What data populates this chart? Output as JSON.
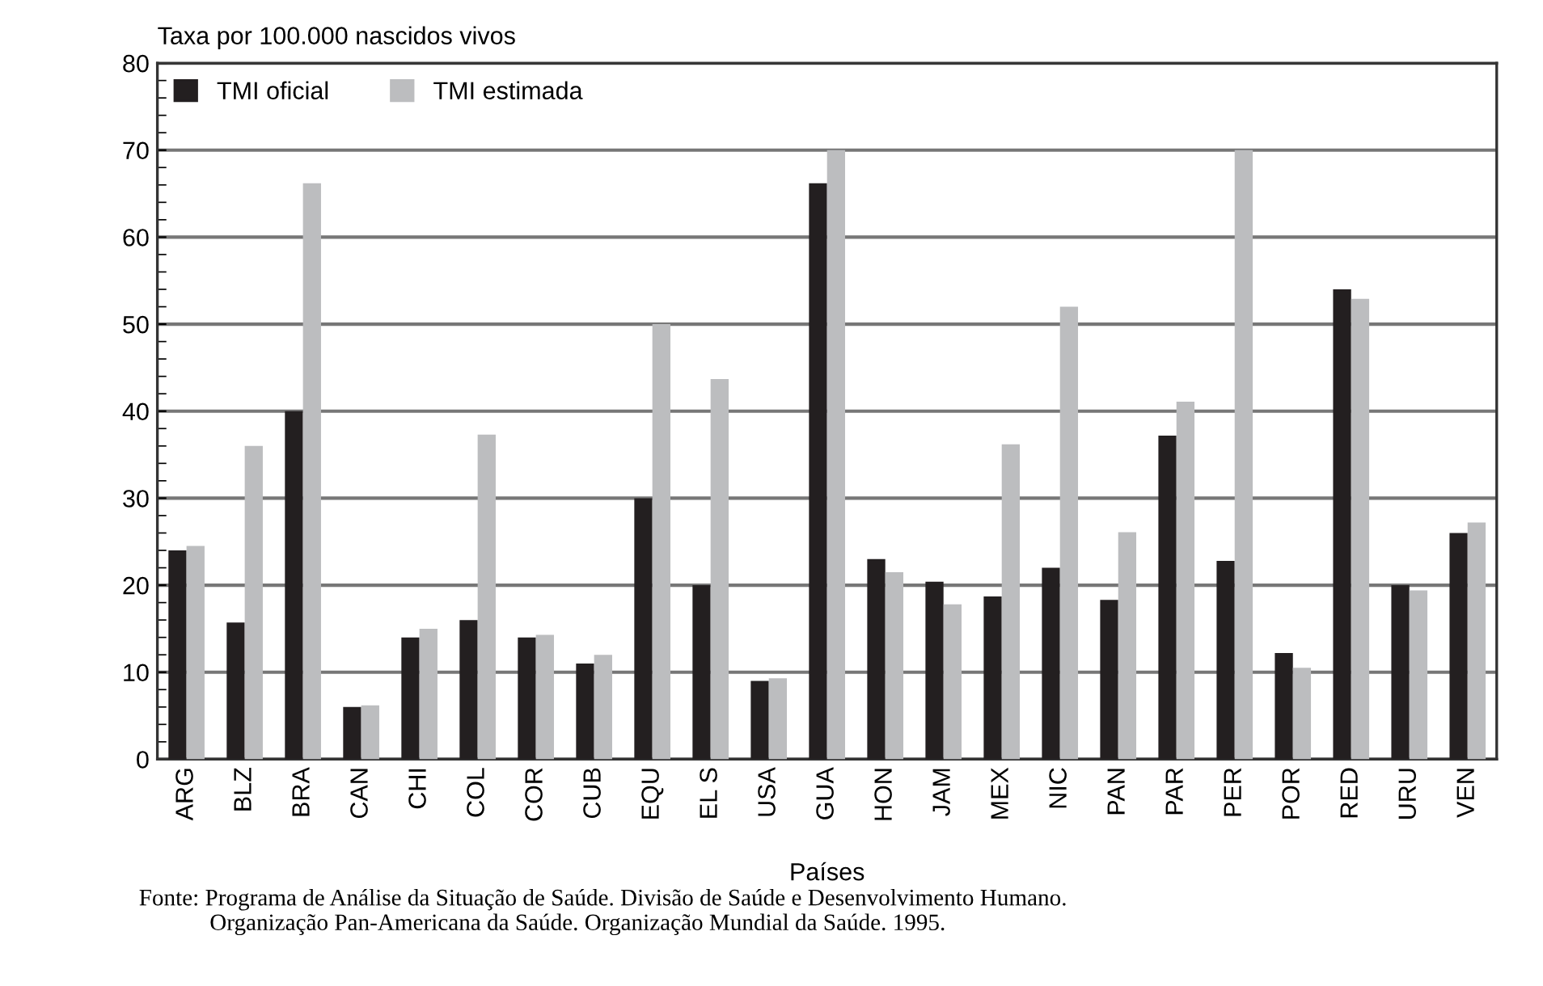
{
  "chart_data": {
    "type": "bar",
    "ylabel": "Taxa por 100.000 nascidos vivos",
    "xlabel": "Países",
    "categories": [
      "ARG",
      "BLZ",
      "BRA",
      "CAN",
      "CHI",
      "COL",
      "COR",
      "CUB",
      "EQU",
      "EL S",
      "USA",
      "GUA",
      "HON",
      "JAM",
      "MEX",
      "NIC",
      "PAN",
      "PAR",
      "PER",
      "POR",
      "RED",
      "URU",
      "VEN"
    ],
    "series": [
      {
        "name": "TMI oficial",
        "color": "#231f20",
        "values": [
          24,
          15.7,
          40,
          6,
          14,
          16,
          14,
          11,
          30,
          20,
          9,
          66.2,
          23,
          20.4,
          18.7,
          22,
          18.3,
          37.2,
          22.8,
          12.2,
          54,
          20,
          26
        ]
      },
      {
        "name": "TMI estimada",
        "color": "#bcbdbf",
        "values": [
          24.5,
          36,
          66.2,
          6.2,
          15,
          37.3,
          14.3,
          12,
          50,
          43.7,
          9.3,
          70,
          21.5,
          17.8,
          36.2,
          52,
          26.1,
          41.1,
          70,
          10.5,
          52.9,
          19.4,
          27.2
        ]
      }
    ],
    "ylim": [
      0,
      80
    ],
    "yticks": [
      0,
      10,
      20,
      30,
      40,
      50,
      60,
      70,
      80
    ],
    "grid": "y",
    "legend": "top left",
    "annotations": [
      "Fonte: Programa de Análise da Situação de Saúde. Divisão de Saúde e Desenvolvimento Humano.\n            Organização Pan-Americana da Saúde. Organização Mundial da Saúde. 1995."
    ]
  }
}
